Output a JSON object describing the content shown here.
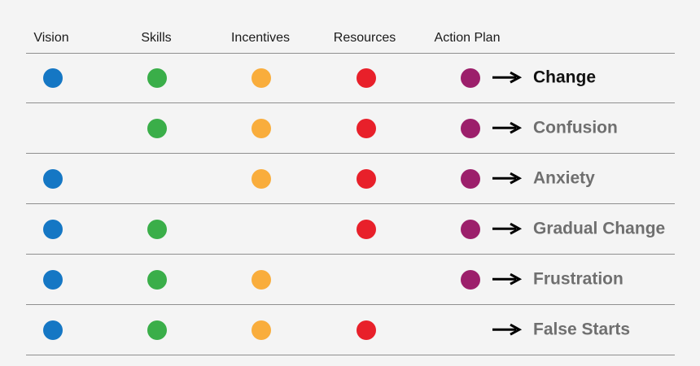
{
  "headers": [
    "Vision",
    "Skills",
    "Incentives",
    "Resources",
    "Action Plan"
  ],
  "colors": {
    "vision": "#1577c4",
    "skills": "#3aae49",
    "incentives": "#f9ad3c",
    "resources": "#e8202a",
    "action_plan": "#9c1f6b",
    "outcome_primary": "#111111",
    "outcome_secondary": "#6f6f6f"
  },
  "rows": [
    {
      "outcome": "Change",
      "present": [
        true,
        true,
        true,
        true,
        true
      ],
      "primary": true
    },
    {
      "outcome": "Confusion",
      "present": [
        false,
        true,
        true,
        true,
        true
      ],
      "primary": false
    },
    {
      "outcome": "Anxiety",
      "present": [
        true,
        false,
        true,
        true,
        true
      ],
      "primary": false
    },
    {
      "outcome": "Gradual Change",
      "present": [
        true,
        true,
        false,
        true,
        true
      ],
      "primary": false
    },
    {
      "outcome": "Frustration",
      "present": [
        true,
        true,
        true,
        false,
        true
      ],
      "primary": false
    },
    {
      "outcome": "False Starts",
      "present": [
        true,
        true,
        true,
        true,
        false
      ],
      "primary": false
    }
  ]
}
